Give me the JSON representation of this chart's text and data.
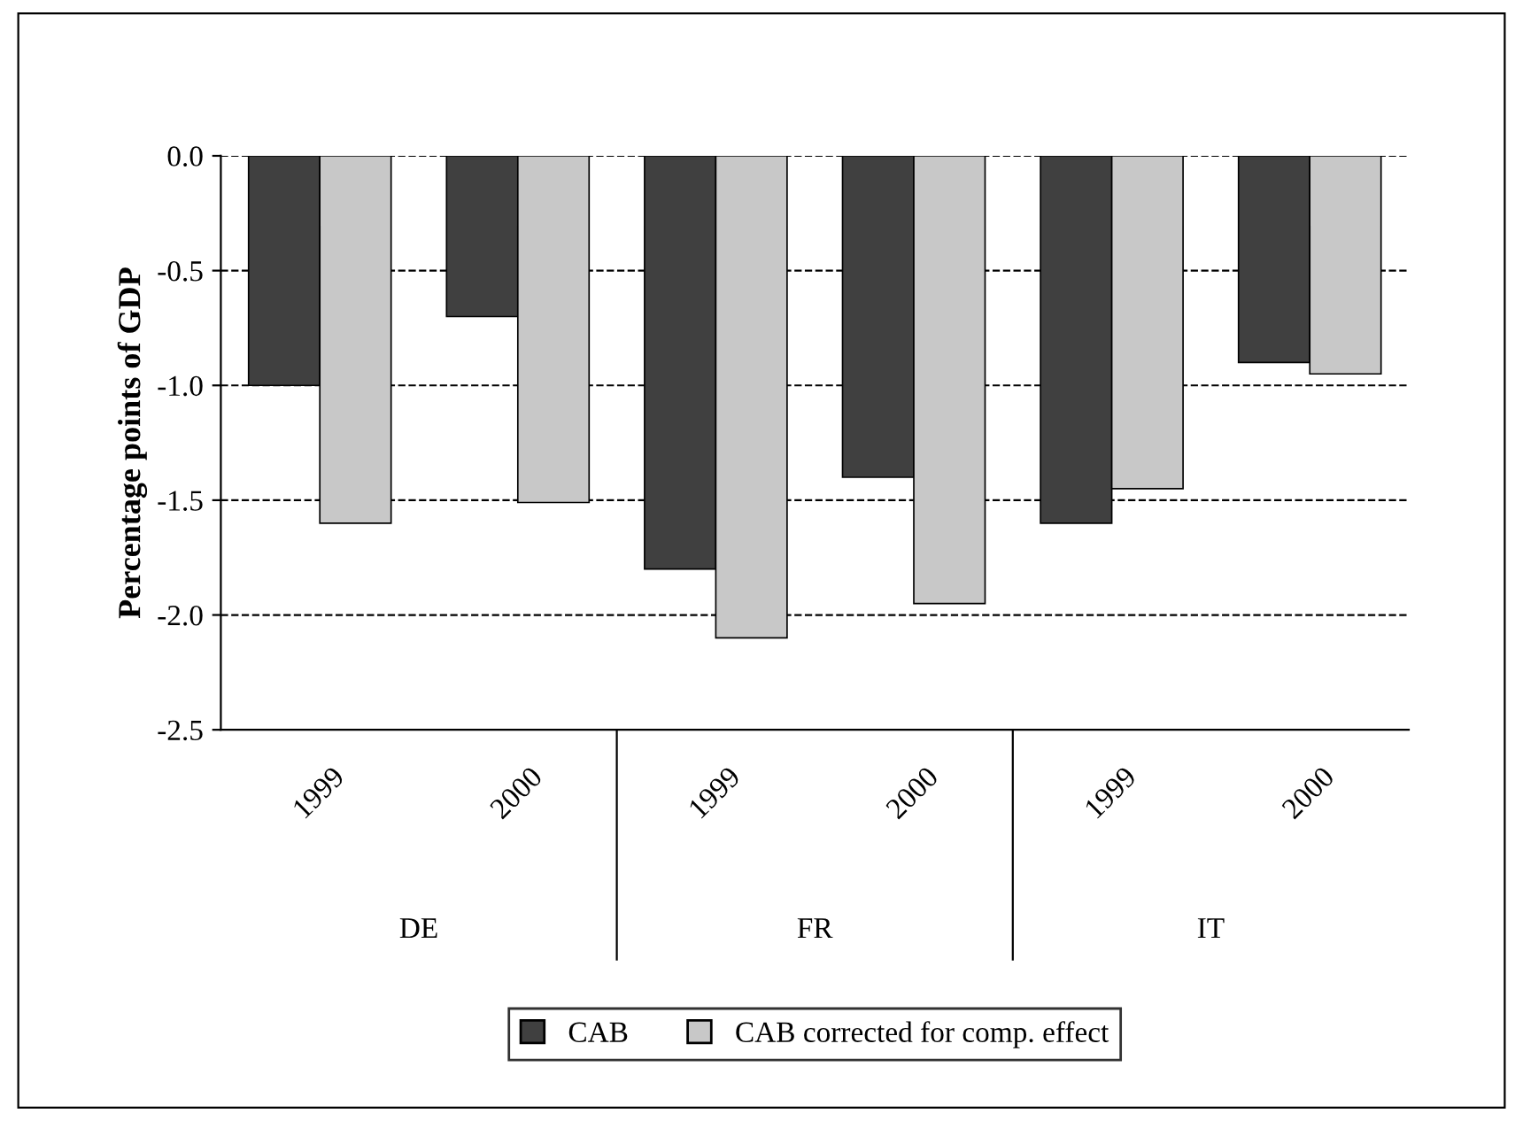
{
  "chart_data": {
    "type": "bar",
    "categories": [
      "1999",
      "2000",
      "1999",
      "2000",
      "1999",
      "2000"
    ],
    "ylabel": "Percentage points of GDP",
    "annotations": [
      "DE",
      "FR",
      "IT"
    ],
    "series": [
      {
        "name": "CAB",
        "color": "#404040",
        "values": [
          -1.0,
          -0.7,
          -1.8,
          -1.4,
          -1.6,
          -0.9
        ]
      },
      {
        "name": "CAB corrected for comp. effect",
        "color": "#c8c8c8",
        "values": [
          -1.6,
          -1.51,
          -2.1,
          -1.95,
          -1.45,
          -0.95
        ]
      }
    ],
    "ylim": [
      -2.5,
      0
    ],
    "yticks": [
      {
        "value": -2.5,
        "label": "-2.5"
      },
      {
        "value": -2.0,
        "label": "-2.0"
      },
      {
        "value": -1.5,
        "label": "-1.5"
      },
      {
        "value": -1.0,
        "label": "-1.0"
      },
      {
        "value": -0.5,
        "label": "-0.5"
      },
      {
        "value": 0,
        "label": "0.0"
      }
    ],
    "grid": "y",
    "legend": "bottom"
  }
}
